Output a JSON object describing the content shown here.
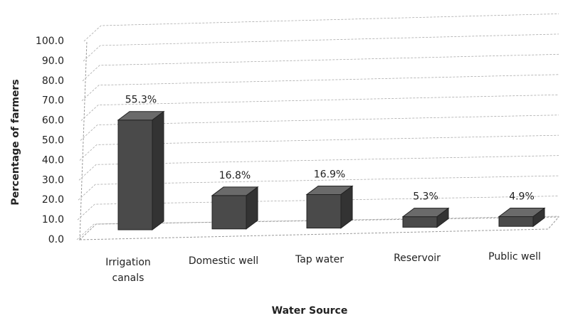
{
  "chart_data": {
    "type": "bar3d",
    "x_label": "Water Source",
    "y_label": "Percentage of farmers",
    "categories": [
      "Irrigation canals",
      "Domestic well",
      "Tap water",
      "Reservoir",
      "Public well"
    ],
    "values": [
      55.3,
      16.8,
      16.9,
      5.3,
      4.9
    ],
    "value_labels": [
      "55.3%",
      "16.8%",
      "16.9%",
      "5.3%",
      "4.9%"
    ],
    "color": "#4a4a4a",
    "ylim": [
      0,
      100
    ],
    "yticks": [
      {
        "value": 0,
        "label": "0.0"
      },
      {
        "value": 10,
        "label": "10.0"
      },
      {
        "value": 20,
        "label": "20.0"
      },
      {
        "value": 30,
        "label": "30.0"
      },
      {
        "value": 40,
        "label": "40.0"
      },
      {
        "value": 50,
        "label": "50.0"
      },
      {
        "value": 60,
        "label": "60.0"
      },
      {
        "value": 70,
        "label": "70.0"
      },
      {
        "value": 80,
        "label": "80.0"
      },
      {
        "value": 90,
        "label": "90.0"
      },
      {
        "value": 100,
        "label": "100.0"
      }
    ],
    "grid": true
  }
}
